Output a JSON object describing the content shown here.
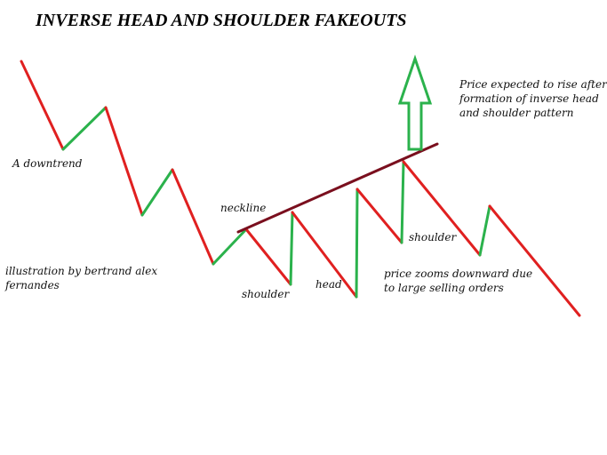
{
  "title": "INVERSE HEAD AND SHOULDER FAKEOUTS",
  "annotations": {
    "downtrend": "A downtrend",
    "credit_line1": "illustration by bertrand alex",
    "credit_line2": "fernandes",
    "neckline": "neckline",
    "shoulder_left": "shoulder",
    "head": "head",
    "shoulder_right": "shoulder",
    "expectation_line1": "Price expected to rise after",
    "expectation_line2": "formation of inverse head",
    "expectation_line3": "and shoulder pattern",
    "fakeout_line1": "price zooms downward due",
    "fakeout_line2": "to large selling orders"
  },
  "colors": {
    "down_segment": "#e02020",
    "up_segment": "#2bb24c",
    "neckline": "#7a0f1e",
    "arrow": "#2bb24c",
    "text": "#111111"
  },
  "icons": {
    "arrow": "up-arrow-icon"
  }
}
